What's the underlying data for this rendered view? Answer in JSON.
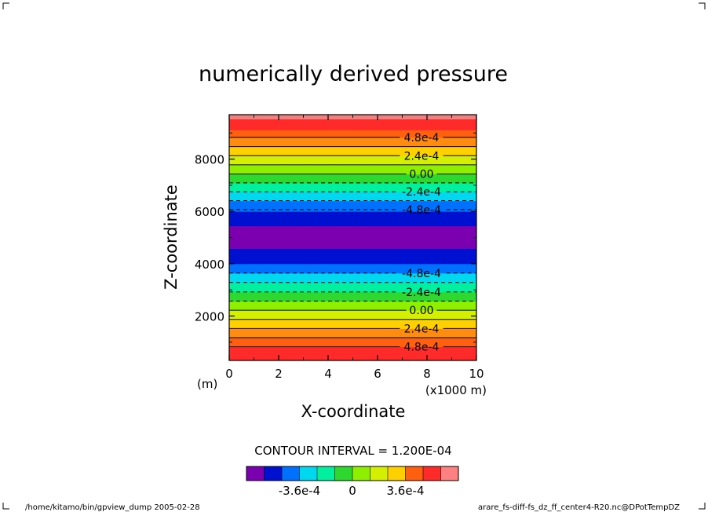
{
  "chart_data": {
    "type": "contour",
    "title": "numerically derived pressure",
    "xlabel": "X-coordinate",
    "ylabel": "Z-coordinate",
    "x_unit_left": "(m)",
    "x_unit_right": "(x1000 m)",
    "xlim": [
      0,
      10
    ],
    "ylim": [
      300,
      9700
    ],
    "x_ticks": [
      "0",
      "2",
      "4",
      "6",
      "8",
      "10"
    ],
    "x_tick_values": [
      0,
      2,
      4,
      6,
      8,
      10
    ],
    "y_ticks": [
      "2000",
      "4000",
      "6000",
      "8000"
    ],
    "y_tick_values": [
      2000,
      4000,
      6000,
      8000
    ],
    "grid": false,
    "contour_interval_text": "CONTOUR INTERVAL = 1.200E-04",
    "bands": [
      {
        "z0": 300,
        "z1": 820,
        "color": "#ff2a2a"
      },
      {
        "z0": 820,
        "z1": 1170,
        "color": "#ff6010"
      },
      {
        "z0": 1170,
        "z1": 1520,
        "color": "#ff8c10"
      },
      {
        "z0": 1520,
        "z1": 1870,
        "color": "#ffd000"
      },
      {
        "z0": 1870,
        "z1": 2220,
        "color": "#d4f000"
      },
      {
        "z0": 2220,
        "z1": 2570,
        "color": "#8ef000"
      },
      {
        "z0": 2570,
        "z1": 2920,
        "color": "#2ed82e"
      },
      {
        "z0": 2920,
        "z1": 3280,
        "color": "#00f0a0"
      },
      {
        "z0": 3280,
        "z1": 3640,
        "color": "#00d8f0"
      },
      {
        "z0": 3640,
        "z1": 4000,
        "color": "#0070ff"
      },
      {
        "z0": 4000,
        "z1": 4580,
        "color": "#0010d0"
      },
      {
        "z0": 4580,
        "z1": 5450,
        "color": "#7a00b0"
      },
      {
        "z0": 5450,
        "z1": 6000,
        "color": "#0010d0"
      },
      {
        "z0": 6000,
        "z1": 6410,
        "color": "#0070ff"
      },
      {
        "z0": 6410,
        "z1": 6750,
        "color": "#00d8f0"
      },
      {
        "z0": 6750,
        "z1": 7090,
        "color": "#00f0a0"
      },
      {
        "z0": 7090,
        "z1": 7430,
        "color": "#2ed82e"
      },
      {
        "z0": 7430,
        "z1": 7780,
        "color": "#8ef000"
      },
      {
        "z0": 7780,
        "z1": 8130,
        "color": "#d4f000"
      },
      {
        "z0": 8130,
        "z1": 8480,
        "color": "#ffd000"
      },
      {
        "z0": 8480,
        "z1": 8830,
        "color": "#ff8c10"
      },
      {
        "z0": 8830,
        "z1": 9120,
        "color": "#ff6010"
      },
      {
        "z0": 9120,
        "z1": 9700,
        "color": "#ff2a2a"
      }
    ],
    "contours": [
      {
        "z": 820,
        "dashed": false,
        "label": "4.8e-4"
      },
      {
        "z": 1170,
        "dashed": false,
        "label": ""
      },
      {
        "z": 1520,
        "dashed": false,
        "label": "2.4e-4"
      },
      {
        "z": 1870,
        "dashed": false,
        "label": ""
      },
      {
        "z": 2220,
        "dashed": false,
        "label": "0.00"
      },
      {
        "z": 2570,
        "dashed": true,
        "label": ""
      },
      {
        "z": 2920,
        "dashed": true,
        "label": "-2.4e-4"
      },
      {
        "z": 3280,
        "dashed": true,
        "label": ""
      },
      {
        "z": 3640,
        "dashed": true,
        "label": "-4.8e-4"
      },
      {
        "z": 6070,
        "dashed": true,
        "label": "-4.8e-4"
      },
      {
        "z": 6410,
        "dashed": true,
        "label": ""
      },
      {
        "z": 6750,
        "dashed": true,
        "label": "-2.4e-4"
      },
      {
        "z": 7090,
        "dashed": true,
        "label": ""
      },
      {
        "z": 7430,
        "dashed": false,
        "label": "0.00"
      },
      {
        "z": 7780,
        "dashed": false,
        "label": ""
      },
      {
        "z": 8130,
        "dashed": false,
        "label": "2.4e-4"
      },
      {
        "z": 8480,
        "dashed": false,
        "label": ""
      },
      {
        "z": 8830,
        "dashed": false,
        "label": "4.8e-4"
      }
    ],
    "colorbar": {
      "colors": [
        "#7a00b0",
        "#0010d0",
        "#0070ff",
        "#00d8f0",
        "#00f0a0",
        "#2ed82e",
        "#8ef000",
        "#d4f000",
        "#ffd000",
        "#ff6010",
        "#ff2a2a",
        "#ff8080"
      ],
      "labels": [
        {
          "text": "-3.6e-4",
          "pos": 2
        },
        {
          "text": "0",
          "pos": 5
        },
        {
          "text": "3.6e-4",
          "pos": 8
        }
      ]
    },
    "footer_left": "/home/kitamo/bin/gpview_dump  2005-02-28",
    "footer_right": "arare_fs-diff-fs_dz_ff_center4-R20.nc@DPotTempDZ"
  }
}
